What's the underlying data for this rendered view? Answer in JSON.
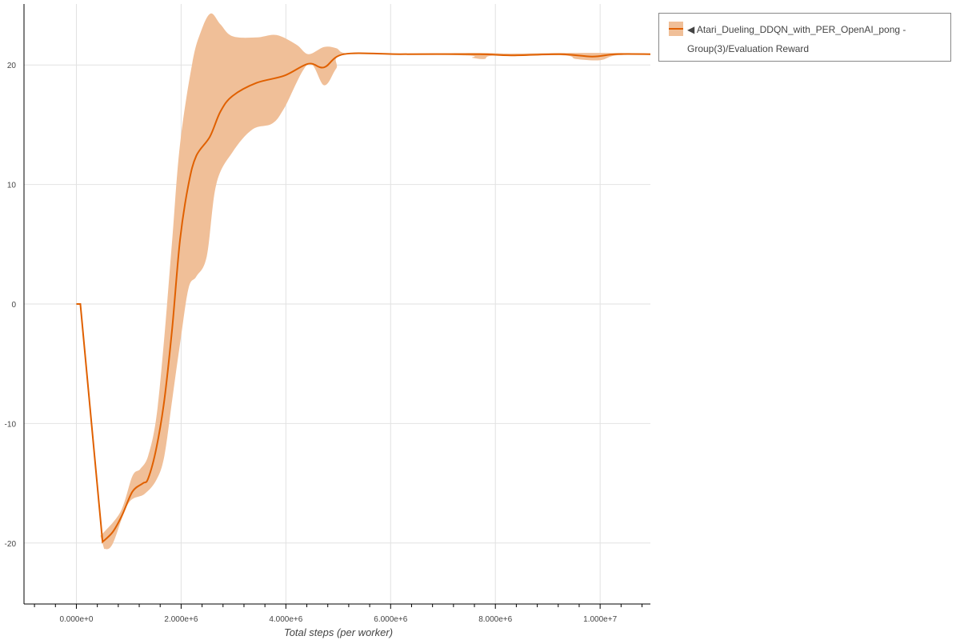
{
  "chart_data": {
    "type": "line",
    "title": "",
    "xlabel": "Total steps (per worker)",
    "ylabel": "",
    "xlim": [
      -1000000,
      10960000
    ],
    "ylim": [
      -25.1,
      25.1
    ],
    "xticks": [
      0,
      2000000,
      4000000,
      6000000,
      8000000,
      10000000
    ],
    "xtick_labels": [
      "0.000e+0",
      "2.000e+6",
      "4.000e+6",
      "6.000e+6",
      "8.000e+6",
      "1.000e+7"
    ],
    "yticks": [
      -20,
      -10,
      0,
      10,
      20
    ],
    "ytick_labels": [
      "-20",
      "-10",
      "0",
      "10",
      "20"
    ],
    "grid": true,
    "legend_position": "outside-right-top",
    "colors": {
      "line": "#e06000",
      "band": "#f0bf98"
    },
    "series": [
      {
        "name": "◀ Atari_Dueling_DDQN_with_PER_OpenAI_pong - Group(3)/Evaluation Reward",
        "mean": [
          [
            0,
            0
          ],
          [
            76000,
            0
          ],
          [
            500000,
            -19.9
          ],
          [
            690000,
            -19.1
          ],
          [
            870000,
            -17.7
          ],
          [
            1070000,
            -15.7
          ],
          [
            1270000,
            -15.0
          ],
          [
            1370000,
            -14.6
          ],
          [
            1530000,
            -12.0
          ],
          [
            1680000,
            -8.0
          ],
          [
            1830000,
            -2.0
          ],
          [
            1980000,
            5.4
          ],
          [
            2140000,
            10.0
          ],
          [
            2290000,
            12.4
          ],
          [
            2550000,
            14.0
          ],
          [
            2750000,
            16.1
          ],
          [
            2980000,
            17.4
          ],
          [
            3440000,
            18.5
          ],
          [
            3970000,
            19.1
          ],
          [
            4430000,
            20.1
          ],
          [
            4730000,
            19.8
          ],
          [
            5110000,
            20.9
          ],
          [
            6180000,
            20.9
          ],
          [
            7700000,
            20.9
          ],
          [
            8300000,
            20.8
          ],
          [
            9240000,
            20.9
          ],
          [
            9850000,
            20.7
          ],
          [
            10300000,
            20.9
          ],
          [
            10960000,
            20.9
          ]
        ],
        "upper": [
          [
            460000,
            -19.4
          ],
          [
            840000,
            -17.4
          ],
          [
            1070000,
            -14.4
          ],
          [
            1220000,
            -13.8
          ],
          [
            1370000,
            -12.7
          ],
          [
            1530000,
            -9.4
          ],
          [
            1680000,
            -2.7
          ],
          [
            1830000,
            5.4
          ],
          [
            1980000,
            13.4
          ],
          [
            2210000,
            20.1
          ],
          [
            2370000,
            22.7
          ],
          [
            2560000,
            24.3
          ],
          [
            2750000,
            23.4
          ],
          [
            2980000,
            22.4
          ],
          [
            3440000,
            22.3
          ],
          [
            3820000,
            22.5
          ],
          [
            4200000,
            21.7
          ],
          [
            4430000,
            20.9
          ],
          [
            4730000,
            21.5
          ],
          [
            4960000,
            21.4
          ],
          [
            5190000,
            20.95
          ],
          [
            6180000,
            20.95
          ],
          [
            7700000,
            21.0
          ],
          [
            8300000,
            20.95
          ],
          [
            9240000,
            21.0
          ],
          [
            10300000,
            21.0
          ],
          [
            10960000,
            20.95
          ]
        ],
        "lower": [
          [
            530000,
            -20.5
          ],
          [
            690000,
            -20.1
          ],
          [
            990000,
            -16.7
          ],
          [
            1300000,
            -15.9
          ],
          [
            1530000,
            -14.7
          ],
          [
            1680000,
            -12.7
          ],
          [
            1830000,
            -8.0
          ],
          [
            1980000,
            -3.3
          ],
          [
            2140000,
            1.3
          ],
          [
            2290000,
            2.3
          ],
          [
            2490000,
            4.0
          ],
          [
            2670000,
            10.0
          ],
          [
            2980000,
            12.7
          ],
          [
            3360000,
            14.6
          ],
          [
            3740000,
            15.1
          ],
          [
            3970000,
            16.4
          ],
          [
            4430000,
            20.1
          ],
          [
            4730000,
            18.3
          ],
          [
            4960000,
            19.7
          ],
          [
            5190000,
            20.9
          ],
          [
            7400000,
            20.8
          ],
          [
            7560000,
            20.6
          ],
          [
            7790000,
            20.5
          ],
          [
            8000000,
            20.8
          ],
          [
            9300000,
            20.8
          ],
          [
            9540000,
            20.5
          ],
          [
            10000000,
            20.4
          ],
          [
            10300000,
            20.8
          ],
          [
            10960000,
            20.9
          ]
        ]
      }
    ]
  }
}
